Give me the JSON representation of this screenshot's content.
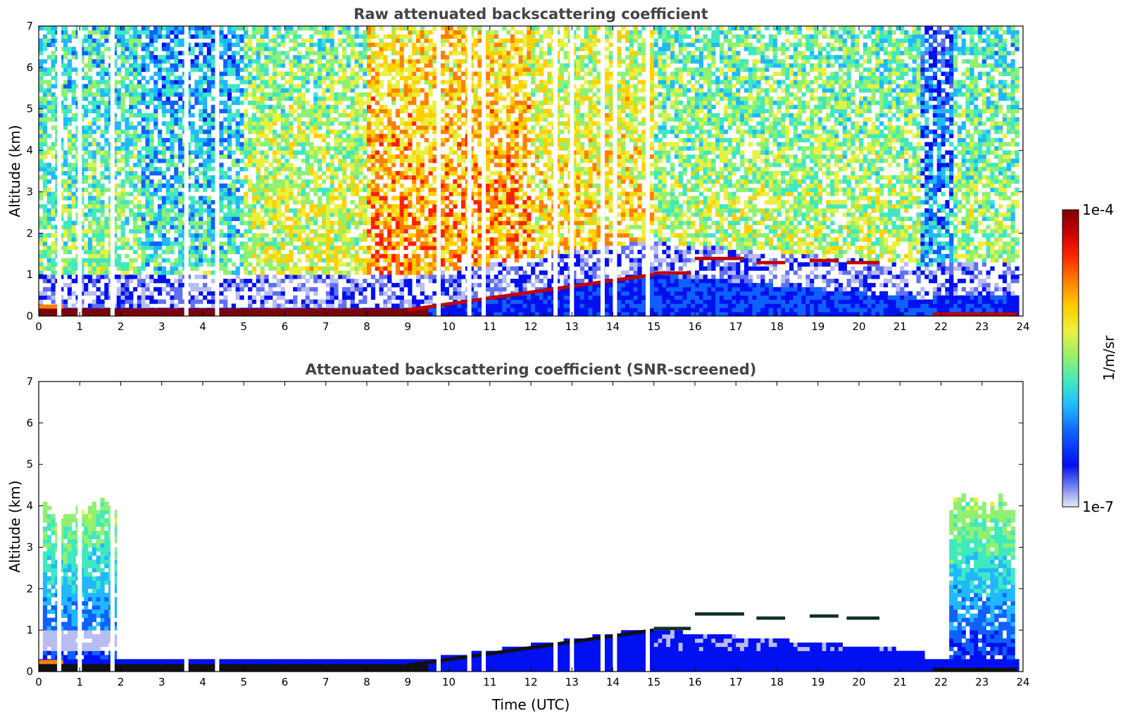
{
  "chart_data": [
    {
      "type": "heatmap",
      "title": "Raw attenuated backscattering coefficient",
      "xlabel": "",
      "ylabel": "Altitude (km)",
      "xlim": [
        0,
        24
      ],
      "ylim": [
        0,
        7
      ],
      "xticks": [
        "0",
        "1",
        "2",
        "3",
        "4",
        "5",
        "6",
        "7",
        "8",
        "9",
        "10",
        "11",
        "12",
        "13",
        "14",
        "15",
        "16",
        "17",
        "18",
        "19",
        "20",
        "21",
        "22",
        "23",
        "24"
      ],
      "yticks": [
        "0",
        "1",
        "2",
        "3",
        "4",
        "5",
        "6",
        "7"
      ],
      "missing_profiles_utc": [
        0.5,
        1.0,
        1.8,
        3.6,
        4.35,
        9.75,
        10.5,
        10.85,
        12.6,
        13.0,
        13.75,
        14.05,
        14.85
      ],
      "features": [
        {
          "name": "surface aerosol layer",
          "t_start": 0,
          "t_end": 9.5,
          "alt_km": 0.1
        },
        {
          "name": "rising boundary layer top",
          "t_start": 9,
          "t_end": 15,
          "alt_start_km": 0.15,
          "alt_end_km": 1.0
        },
        {
          "name": "cloud layer",
          "t_start": 15,
          "t_end": 20.5,
          "alt_km": 1.3
        },
        {
          "name": "low layer",
          "t_start": 21.8,
          "t_end": 24,
          "alt_km": 0.05
        }
      ]
    },
    {
      "type": "heatmap",
      "title": "Attenuated backscattering coefficient (SNR-screened)",
      "xlabel": "Time (UTC)",
      "ylabel": "Altitude (km)",
      "xlim": [
        0,
        24
      ],
      "ylim": [
        0,
        7
      ],
      "xticks": [
        "0",
        "1",
        "2",
        "3",
        "4",
        "5",
        "6",
        "7",
        "8",
        "9",
        "10",
        "11",
        "12",
        "13",
        "14",
        "15",
        "16",
        "17",
        "18",
        "19",
        "20",
        "21",
        "22",
        "23",
        "24"
      ],
      "yticks": [
        "0",
        "1",
        "2",
        "3",
        "4",
        "5",
        "6",
        "7"
      ],
      "missing_profiles_utc": [
        0.5,
        1.0,
        1.8,
        3.6,
        4.35,
        9.75,
        10.5,
        10.85,
        12.6,
        13.0,
        13.75,
        14.05,
        14.85
      ],
      "features": [
        {
          "name": "early aerosol column",
          "t_start": 0.1,
          "t_end": 1.9,
          "alt_top_km": 4.0
        },
        {
          "name": "surface aerosol layer",
          "t_start": 0,
          "t_end": 9.5,
          "alt_km": 0.1
        },
        {
          "name": "rising boundary layer top",
          "t_start": 9,
          "t_end": 15,
          "alt_start_km": 0.15,
          "alt_end_km": 1.0
        },
        {
          "name": "cloud layer",
          "t_start": 15,
          "t_end": 20.5,
          "alt_km": 1.3
        },
        {
          "name": "late aerosol column",
          "t_start": 22.2,
          "t_end": 23.8,
          "alt_top_km": 4.2
        }
      ]
    }
  ],
  "colorbar": {
    "max_label": "1e-4",
    "min_label": "1e-7",
    "unit_label": "1/m/sr",
    "colors": [
      "#7f0000",
      "#c00000",
      "#ff2000",
      "#ff8000",
      "#ffd000",
      "#e8f040",
      "#90f070",
      "#40e8c0",
      "#20b8ff",
      "#1060ff",
      "#0010f0",
      "#6070f0",
      "#b8bcf2",
      "#e8e8f8"
    ]
  }
}
